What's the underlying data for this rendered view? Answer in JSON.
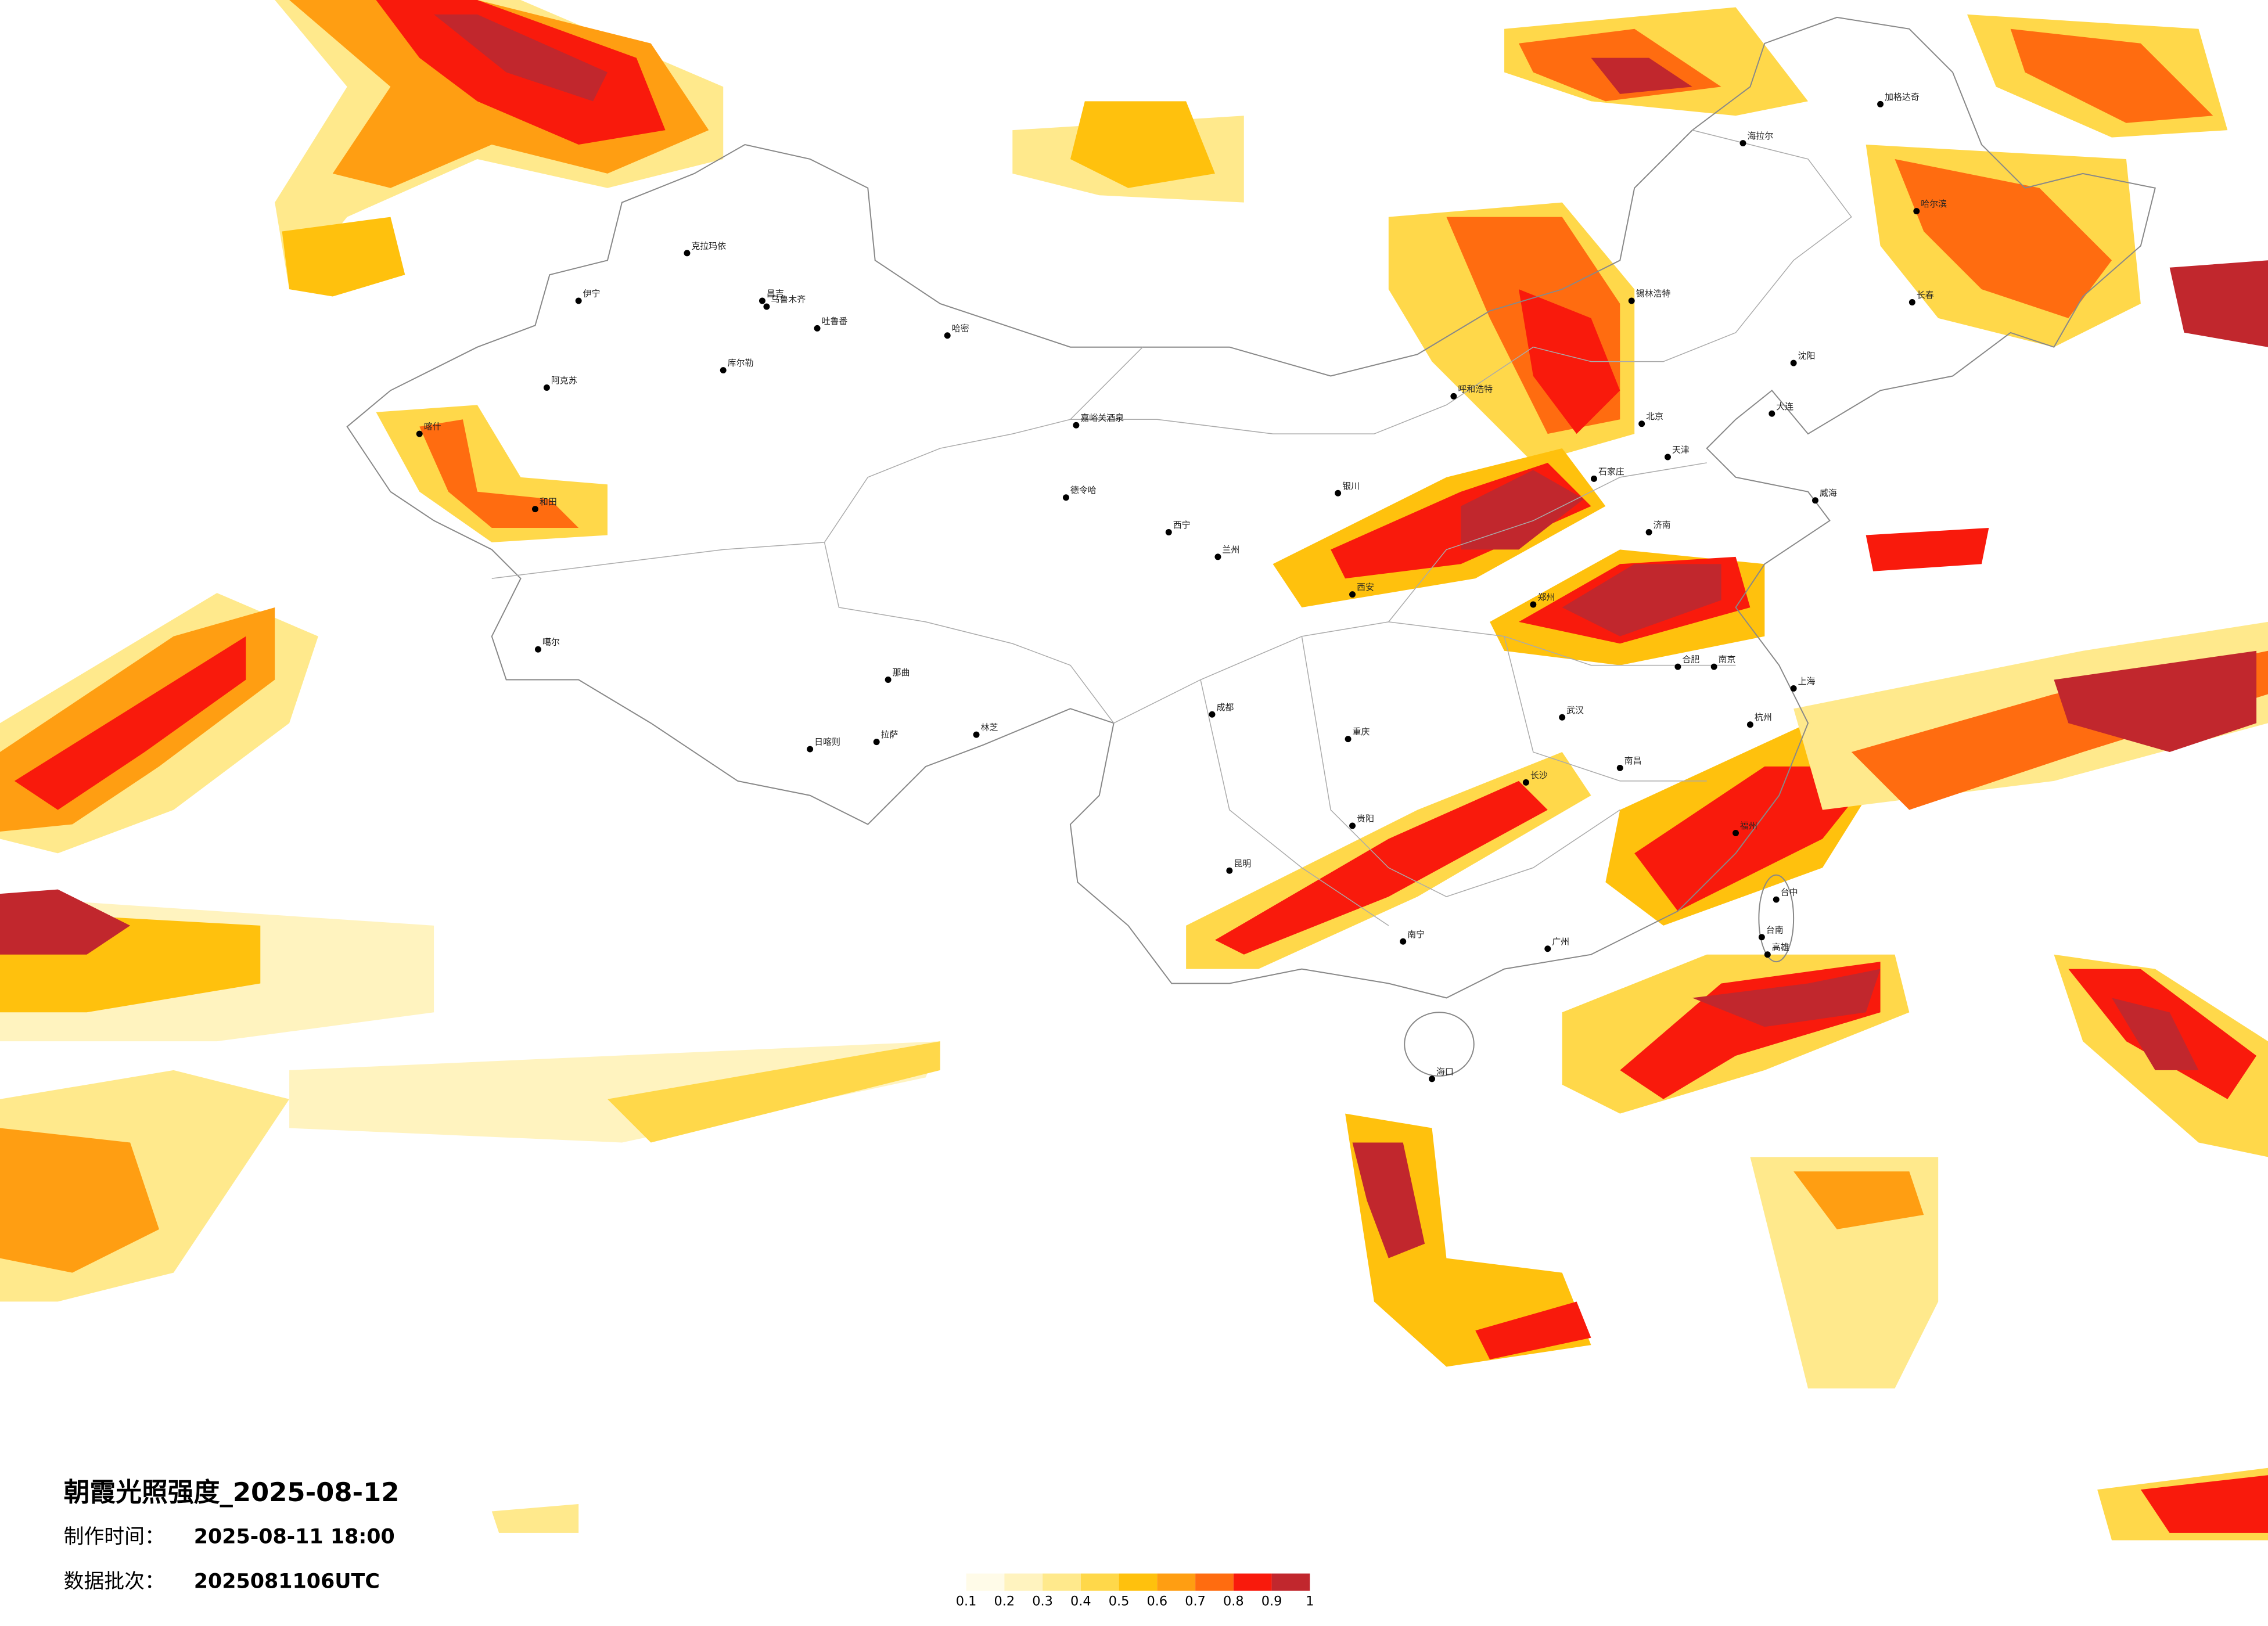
{
  "title": "朝霞光照强度_2025-08-12",
  "made_time": {
    "label": "制作时间：",
    "value": "2025-08-11 18:00"
  },
  "batch": {
    "label": "数据批次：",
    "value": "2025081106UTC"
  },
  "colorbar": {
    "ticks": [
      0.1,
      0.2,
      0.3,
      0.4,
      0.5,
      0.6,
      0.7,
      0.8,
      0.9,
      1
    ],
    "colors": [
      "#fffbe8",
      "#fff3bf",
      "#ffe98c",
      "#ffd84a",
      "#ffc10d",
      "#ff9e12",
      "#ff6c10",
      "#f91a0c",
      "#c1272d"
    ]
  },
  "cities": [
    "克拉玛依",
    "伊宁",
    "昌吉",
    "乌鲁木齐",
    "吐鲁番",
    "哈密",
    "库尔勒",
    "阿克苏",
    "喀什",
    "和田",
    "噶尔",
    "德令哈",
    "嘉峪关酒泉",
    "日喀则",
    "拉萨",
    "林芝",
    "那曲",
    "海拉尔",
    "加格达奇",
    "锡林浩特",
    "呼和浩特",
    "银川",
    "兰州",
    "西宁",
    "西安",
    "成都",
    "重庆",
    "贵阳",
    "昆明",
    "南宁",
    "广州",
    "海口",
    "长沙",
    "武汉",
    "郑州",
    "石家庄",
    "北京",
    "天津",
    "济南",
    "沈阳",
    "长春",
    "哈尔滨",
    "上海",
    "南京",
    "杭州",
    "福州",
    "台中",
    "台南",
    "高雄",
    "合肥",
    "南昌",
    "威海",
    "大连"
  ]
}
